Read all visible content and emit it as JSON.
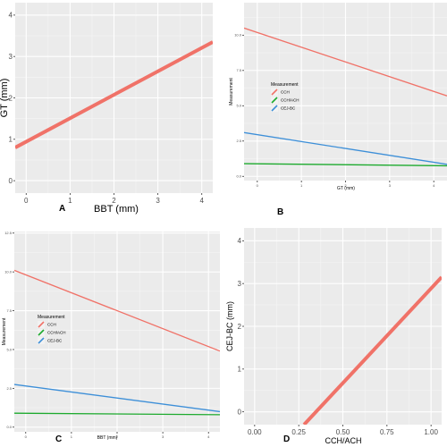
{
  "chart_data": [
    {
      "panel_label": "A",
      "type": "line",
      "xlabel": "BBT (mm)",
      "ylabel": "GT (mm)",
      "xlim": [
        -0.25,
        4.25
      ],
      "ylim": [
        -0.3,
        4.3
      ],
      "xticks": [
        0,
        1,
        2,
        3,
        4
      ],
      "yticks": [
        0,
        1,
        2,
        3,
        4
      ],
      "grid": true,
      "legend": null,
      "series": [
        {
          "color": "#F07268",
          "x": [
            -0.25,
            4.25
          ],
          "y": [
            0.8,
            3.35
          ]
        }
      ]
    },
    {
      "panel_label": "B",
      "type": "line",
      "xlabel": "GT (mm)",
      "ylabel": "Measurement",
      "xlim": [
        -0.3,
        4.3
      ],
      "ylim": [
        -0.3,
        12.3
      ],
      "xticks": [
        0,
        1,
        2,
        3,
        4
      ],
      "yticks": [
        0.0,
        2.5,
        5.0,
        7.5,
        10.0
      ],
      "grid": true,
      "legend": {
        "title": "Measurement",
        "position": "left",
        "entries": [
          "CCH",
          "CCH/ACH",
          "CEJ-BC"
        ]
      },
      "series": [
        {
          "name": "CCH",
          "color": "#F07268",
          "x": [
            -0.3,
            4.3
          ],
          "y": [
            10.5,
            5.7
          ]
        },
        {
          "name": "CCH/ACH",
          "color": "#1DAA2E",
          "x": [
            -0.3,
            4.3
          ],
          "y": [
            0.9,
            0.75
          ]
        },
        {
          "name": "CEJ-BC",
          "color": "#3D8FD8",
          "x": [
            -0.3,
            4.3
          ],
          "y": [
            3.1,
            0.85
          ]
        }
      ]
    },
    {
      "panel_label": "C",
      "type": "line",
      "xlabel": "BBT (mm)",
      "ylabel": "Measurement",
      "xlim": [
        -0.25,
        4.25
      ],
      "ylim": [
        -0.3,
        12.6
      ],
      "xticks": [
        0,
        1,
        2,
        3,
        4
      ],
      "yticks": [
        0.0,
        2.5,
        5.0,
        7.5,
        10.0,
        12.5
      ],
      "grid": true,
      "legend": {
        "title": "Measurement",
        "position": "left",
        "entries": [
          "CCH",
          "CCH/ACH",
          "CEJ-BC"
        ]
      },
      "series": [
        {
          "name": "CCH",
          "color": "#F07268",
          "x": [
            -0.25,
            4.25
          ],
          "y": [
            10.1,
            4.9
          ]
        },
        {
          "name": "CCH/ACH",
          "color": "#1DAA2E",
          "x": [
            -0.25,
            4.25
          ],
          "y": [
            0.9,
            0.8
          ]
        },
        {
          "name": "CEJ-BC",
          "color": "#3D8FD8",
          "x": [
            -0.25,
            4.25
          ],
          "y": [
            2.75,
            1.0
          ]
        }
      ]
    },
    {
      "panel_label": "D",
      "type": "line",
      "xlabel": "CCH/ACH",
      "ylabel": "CEJ-BC (mm)",
      "xlim": [
        -0.06,
        1.06
      ],
      "ylim": [
        -0.3,
        4.3
      ],
      "xticks": [
        0.0,
        0.25,
        0.5,
        0.75,
        1.0
      ],
      "xtick_labels": [
        "0.00",
        "0.25",
        "0.50",
        "0.75",
        "1.00"
      ],
      "yticks": [
        0,
        1,
        2,
        3,
        4
      ],
      "grid": true,
      "legend": null,
      "series": [
        {
          "color": "#F07268",
          "x": [
            0.28,
            1.06
          ],
          "y": [
            -0.3,
            3.15
          ]
        }
      ]
    }
  ]
}
